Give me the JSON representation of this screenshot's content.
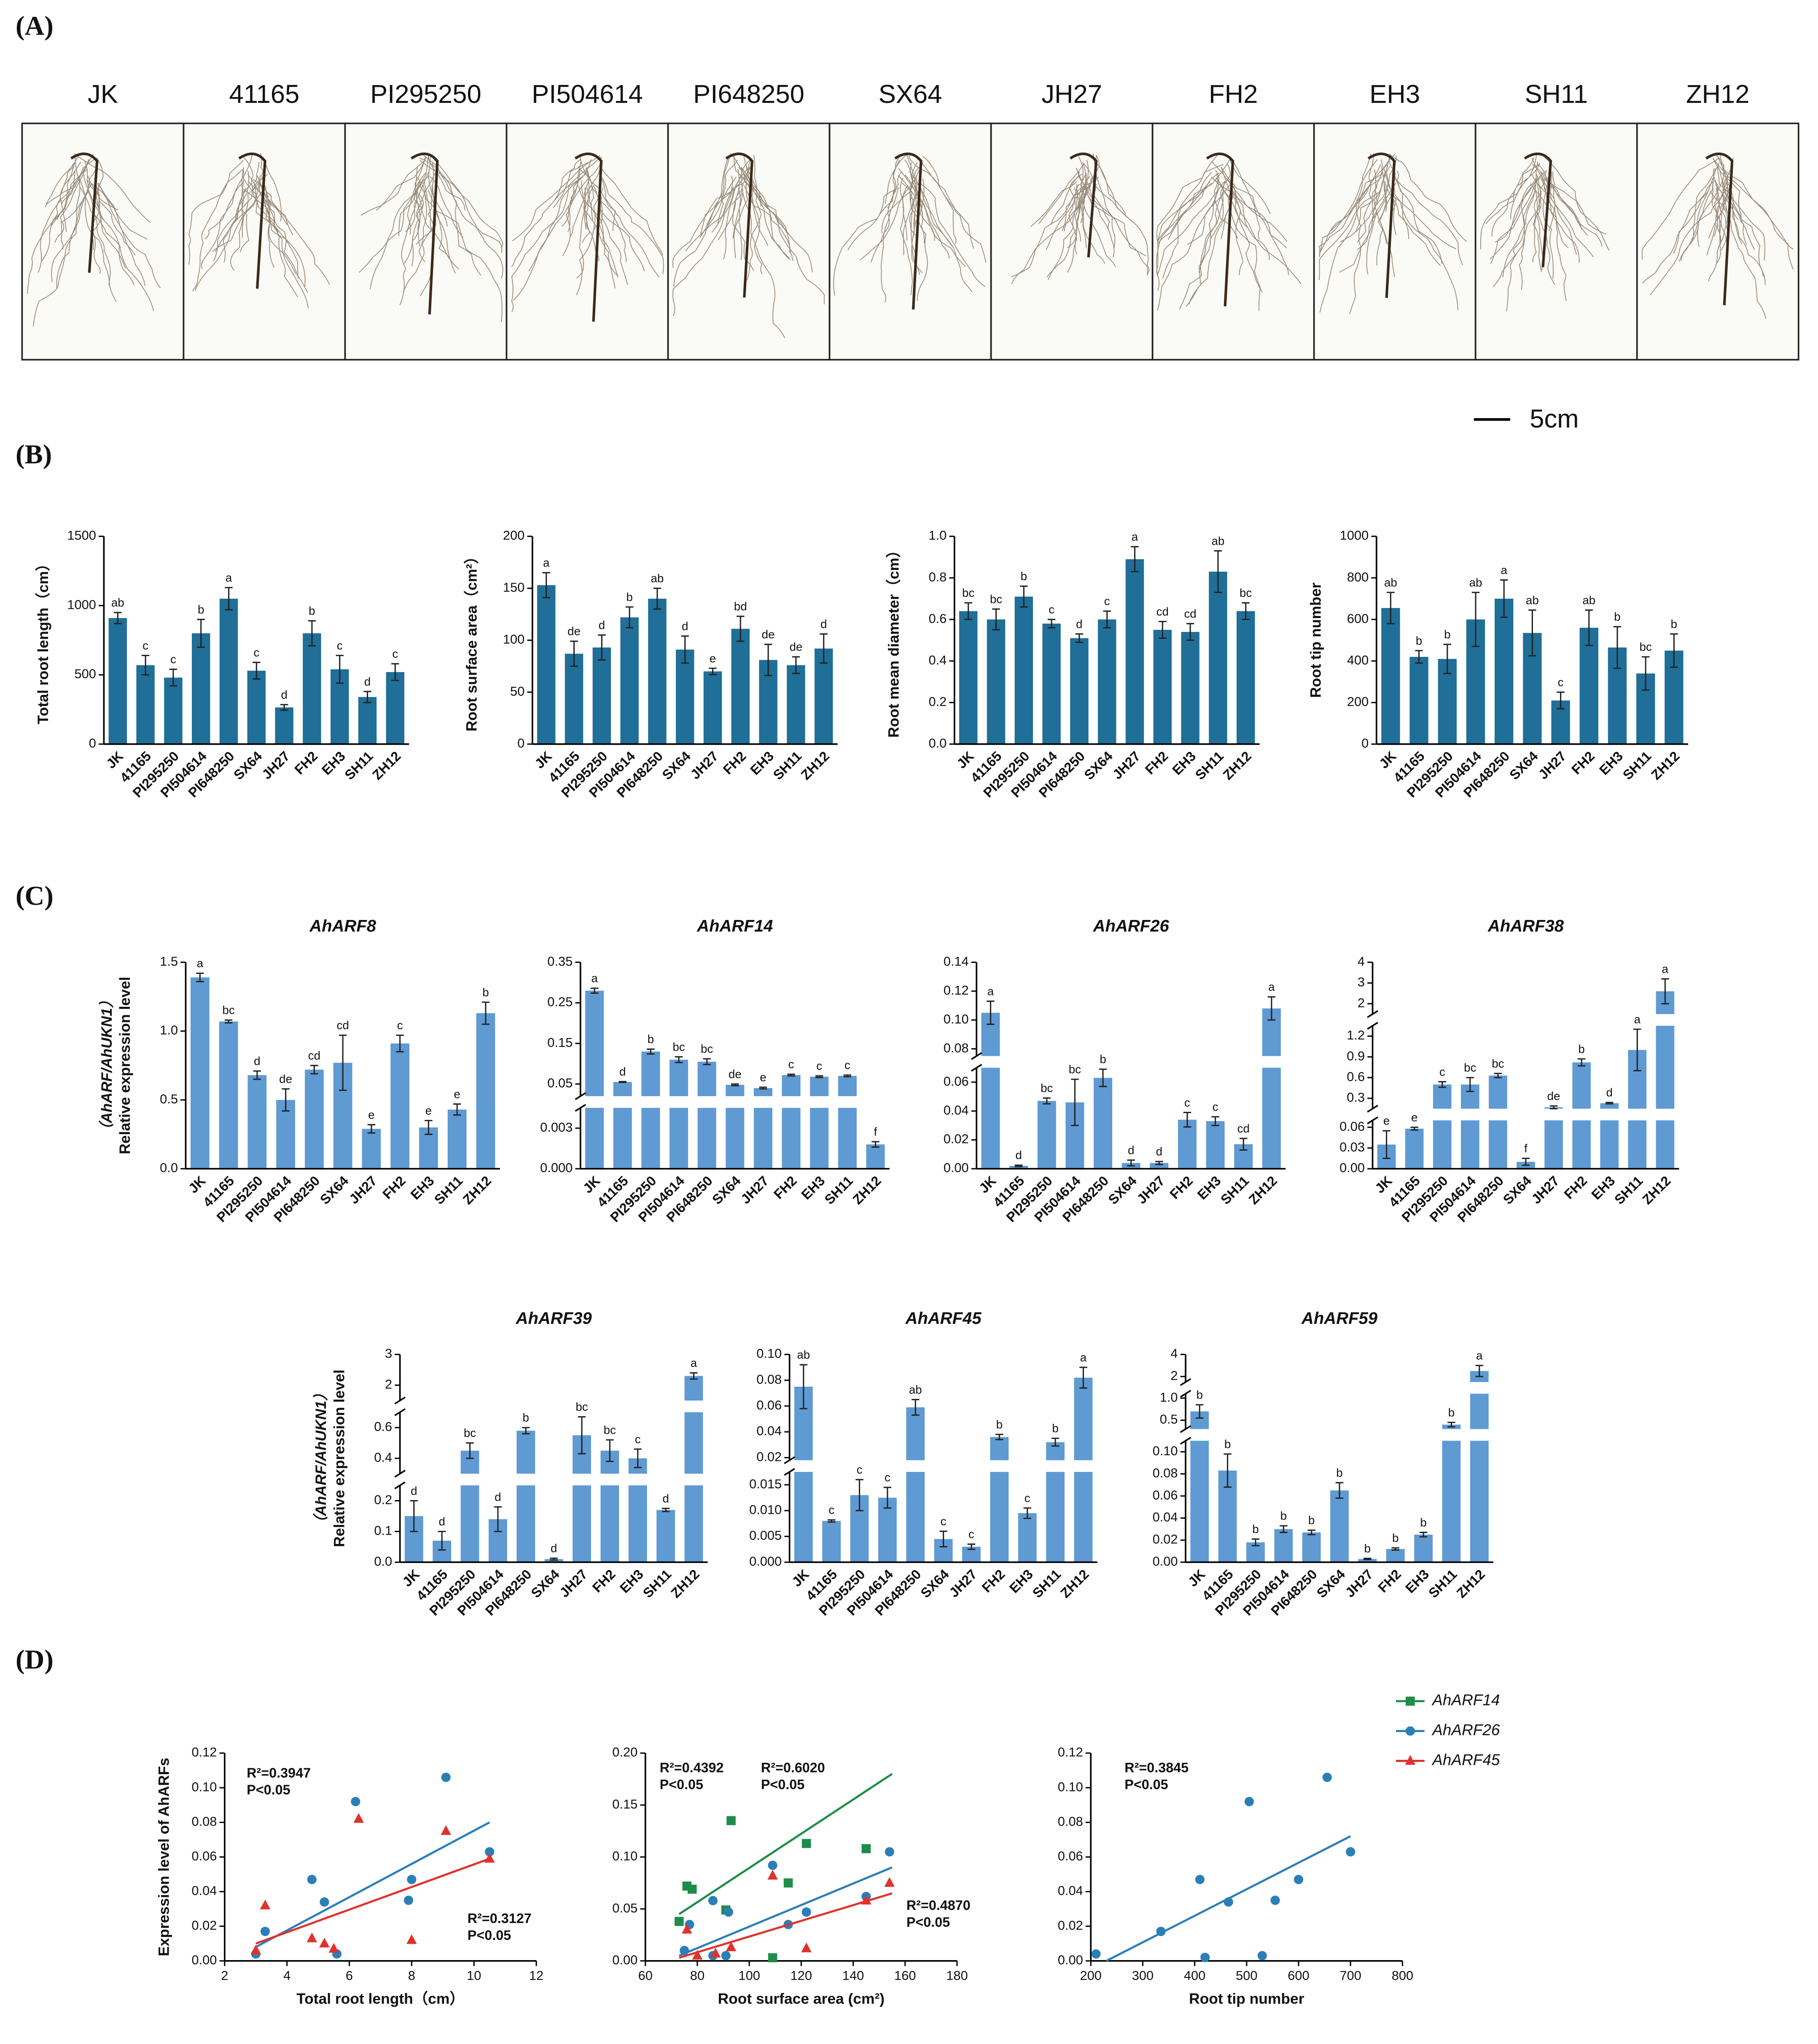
{
  "panels": [
    "(A)",
    "(B)",
    "(C)",
    "(D)"
  ],
  "photos": {
    "labels": [
      "JK",
      "41165",
      "PI295250",
      "PI504614",
      "PI648250",
      "SX64",
      "JH27",
      "FH2",
      "EH3",
      "SH11",
      "ZH12"
    ],
    "scale": "5cm"
  },
  "chart_data": [
    {
      "type": "bar",
      "ylabel": "Total root length（cm）",
      "color": "#1f6f98",
      "categories": [
        "JK",
        "41165",
        "PI295250",
        "PI504614",
        "PI648250",
        "SX64",
        "JH27",
        "FH2",
        "EH3",
        "SH11",
        "ZH12"
      ],
      "values": [
        910,
        570,
        480,
        800,
        1050,
        530,
        265,
        800,
        540,
        340,
        520
      ],
      "errors": [
        40,
        70,
        60,
        100,
        80,
        60,
        20,
        90,
        100,
        40,
        60
      ],
      "letters": [
        "ab",
        "c",
        "c",
        "b",
        "a",
        "c",
        "d",
        "b",
        "c",
        "d",
        "c"
      ],
      "ylim": [
        0,
        1500
      ],
      "yticks": [
        0,
        500,
        1000,
        1500
      ]
    },
    {
      "type": "bar",
      "ylabel": "Root surface area（cm²）",
      "color": "#1f6f98",
      "categories": [
        "JK",
        "41165",
        "PI295250",
        "PI504614",
        "PI648250",
        "SX64",
        "JH27",
        "FH2",
        "EH3",
        "SH11",
        "ZH12"
      ],
      "values": [
        153,
        87,
        93,
        122,
        140,
        91,
        70,
        111,
        81,
        76,
        92
      ],
      "errors": [
        12,
        12,
        12,
        10,
        10,
        13,
        3,
        12,
        15,
        8,
        14
      ],
      "letters": [
        "a",
        "de",
        "d",
        "b",
        "ab",
        "d",
        "e",
        "bd",
        "de",
        "de",
        "d"
      ],
      "ylim": [
        0,
        200
      ],
      "yticks": [
        0,
        50,
        100,
        150,
        200
      ]
    },
    {
      "type": "bar",
      "ylabel": "Root mean diameter（cm）",
      "color": "#1f6f98",
      "categories": [
        "JK",
        "41165",
        "PI295250",
        "PI504614",
        "PI648250",
        "SX64",
        "JH27",
        "FH2",
        "EH3",
        "SH11",
        "ZH12"
      ],
      "values": [
        0.64,
        0.6,
        0.71,
        0.58,
        0.51,
        0.6,
        0.89,
        0.55,
        0.54,
        0.83,
        0.64
      ],
      "errors": [
        0.04,
        0.05,
        0.05,
        0.02,
        0.02,
        0.04,
        0.06,
        0.04,
        0.04,
        0.1,
        0.04
      ],
      "letters": [
        "bc",
        "bc",
        "b",
        "c",
        "d",
        "c",
        "a",
        "cd",
        "cd",
        "ab",
        "bc"
      ],
      "ylim": [
        0,
        1
      ],
      "yticks": [
        {
          "value": 0,
          "label": "0.0"
        },
        0.2,
        0.4,
        0.6,
        0.8,
        {
          "value": 1,
          "label": "1.0"
        }
      ]
    },
    {
      "type": "bar",
      "ylabel": "Root tip number",
      "color": "#1f6f98",
      "categories": [
        "JK",
        "41165",
        "PI295250",
        "PI504614",
        "PI648250",
        "SX64",
        "JH27",
        "FH2",
        "EH3",
        "SH11",
        "ZH12"
      ],
      "values": [
        655,
        420,
        410,
        600,
        700,
        535,
        210,
        560,
        465,
        340,
        450
      ],
      "errors": [
        75,
        30,
        70,
        130,
        90,
        110,
        40,
        85,
        100,
        80,
        80
      ],
      "letters": [
        "ab",
        "b",
        "b",
        "ab",
        "a",
        "ab",
        "c",
        "ab",
        "b",
        "bc",
        "b"
      ],
      "ylim": [
        0,
        1000
      ],
      "yticks": [
        0,
        200,
        400,
        600,
        800,
        1000
      ]
    },
    {
      "type": "bar",
      "title": "AhARF8",
      "ylabel": [
        "Relative expression level",
        "（AhARF/AhUKN1）"
      ],
      "color": "#5f9ad3",
      "categories": [
        "JK",
        "41165",
        "PI295250",
        "PI504614",
        "PI648250",
        "SX64",
        "JH27",
        "FH2",
        "EH3",
        "SH11",
        "ZH12"
      ],
      "values": [
        1.39,
        1.07,
        0.68,
        0.5,
        0.72,
        0.77,
        0.29,
        0.91,
        0.3,
        0.43,
        1.13
      ],
      "errors": [
        0.03,
        0.01,
        0.03,
        0.08,
        0.03,
        0.2,
        0.03,
        0.06,
        0.05,
        0.04,
        0.08
      ],
      "letters": [
        "a",
        "bc",
        "d",
        "de",
        "cd",
        "cd",
        "e",
        "c",
        "e",
        "e",
        "b"
      ],
      "ylim": [
        0,
        1.5
      ],
      "yticks": [
        {
          "value": 0,
          "label": "0.0"
        },
        0.5,
        {
          "value": 1,
          "label": "1.0"
        },
        1.5
      ]
    },
    {
      "type": "bar",
      "title": "AhARF14",
      "color": "#5f9ad3",
      "categories": [
        "JK",
        "41165",
        "PI295250",
        "PI504614",
        "PI648250",
        "SX64",
        "JH27",
        "FH2",
        "EH3",
        "SH11",
        "ZH12"
      ],
      "values": [
        0.28,
        0.055,
        0.13,
        0.11,
        0.105,
        0.048,
        0.04,
        0.072,
        0.068,
        0.07,
        0.0018
      ],
      "errors": [
        0.006,
        0.001,
        0.006,
        0.007,
        0.007,
        0.002,
        0.002,
        0.002,
        0.002,
        0.002,
        0.0002
      ],
      "letters": [
        "a",
        "d",
        "b",
        "bc",
        "bc",
        "de",
        "e",
        "c",
        "c",
        "c",
        "f"
      ],
      "ylim": [
        0,
        0.35
      ],
      "ysegments": [
        [
          0,
          0.0045
        ],
        [
          0.02,
          0.35
        ]
      ],
      "yticks": [
        {
          "value": 0,
          "label": "0.000"
        },
        0.003,
        0.05,
        0.15,
        0.25,
        0.35
      ]
    },
    {
      "type": "bar",
      "title": "AhARF26",
      "color": "#5f9ad3",
      "categories": [
        "JK",
        "41165",
        "PI295250",
        "PI504614",
        "PI648250",
        "SX64",
        "JH27",
        "FH2",
        "EH3",
        "SH11",
        "ZH12"
      ],
      "values": [
        0.105,
        0.002,
        0.047,
        0.046,
        0.063,
        0.004,
        0.004,
        0.034,
        0.033,
        0.017,
        0.108
      ],
      "errors": [
        0.008,
        0.0005,
        0.002,
        0.016,
        0.006,
        0.002,
        0.001,
        0.005,
        0.003,
        0.004,
        0.008
      ],
      "letters": [
        "a",
        "d",
        "bc",
        "bc",
        "b",
        "d",
        "d",
        "c",
        "c",
        "cd",
        "a"
      ],
      "ylim": [
        0,
        0.14
      ],
      "ysegments": [
        [
          0,
          0.07
        ],
        [
          0.075,
          0.14
        ]
      ],
      "yticks": [
        {
          "value": 0,
          "label": "0.00"
        },
        0.02,
        0.04,
        0.06,
        0.08,
        {
          "value": 0.1,
          "label": "0.10"
        },
        0.12,
        0.14
      ]
    },
    {
      "type": "bar",
      "title": "AhARF38",
      "color": "#5f9ad3",
      "categories": [
        "JK",
        "41165",
        "PI295250",
        "PI504614",
        "PI648250",
        "SX64",
        "JH27",
        "FH2",
        "EH3",
        "SH11",
        "ZH12"
      ],
      "values": [
        0.035,
        0.058,
        0.5,
        0.5,
        0.63,
        0.01,
        0.17,
        0.82,
        0.23,
        1,
        2.6
      ],
      "errors": [
        0.02,
        0.002,
        0.04,
        0.1,
        0.03,
        0.005,
        0.02,
        0.05,
        0.01,
        0.3,
        0.6
      ],
      "letters": [
        "e",
        "e",
        "c",
        "bc",
        "bc",
        "f",
        "de",
        "b",
        "d",
        "a",
        "a"
      ],
      "ylim": [
        0,
        4
      ],
      "ysegments": [
        [
          0,
          0.07
        ],
        [
          0.15,
          1.35
        ],
        [
          1.5,
          4
        ]
      ],
      "yticks": [
        {
          "value": 0,
          "label": "0.00"
        },
        0.03,
        0.06,
        0.3,
        0.6,
        0.9,
        1.2,
        2,
        3,
        4
      ]
    },
    {
      "type": "bar",
      "title": "AhARF39",
      "ylabel": [
        "Relative expression level",
        "（AhARF/AhUKN1）"
      ],
      "color": "#5f9ad3",
      "categories": [
        "JK",
        "41165",
        "PI295250",
        "PI504614",
        "PI648250",
        "SX64",
        "JH27",
        "FH2",
        "EH3",
        "SH11",
        "ZH12"
      ],
      "values": [
        0.15,
        0.07,
        0.45,
        0.14,
        0.58,
        0.01,
        0.55,
        0.45,
        0.4,
        0.17,
        2.3
      ],
      "errors": [
        0.05,
        0.03,
        0.05,
        0.04,
        0.02,
        0.003,
        0.12,
        0.07,
        0.06,
        0.005,
        0.1
      ],
      "letters": [
        "d",
        "d",
        "bc",
        "d",
        "b",
        "d",
        "bc",
        "bc",
        "c",
        "d",
        "a"
      ],
      "ylim": [
        0,
        3
      ],
      "ysegments": [
        [
          0,
          0.25
        ],
        [
          0.3,
          0.7
        ],
        [
          1.5,
          3
        ]
      ],
      "yticks": [
        {
          "value": 0,
          "label": "0.0"
        },
        0.1,
        0.2,
        0.4,
        0.6,
        2,
        3
      ]
    },
    {
      "type": "bar",
      "title": "AhARF45",
      "color": "#5f9ad3",
      "categories": [
        "JK",
        "41165",
        "PI295250",
        "PI504614",
        "PI648250",
        "SX64",
        "JH27",
        "FH2",
        "EH3",
        "SH11",
        "ZH12"
      ],
      "values": [
        0.075,
        0.008,
        0.013,
        0.0125,
        0.059,
        0.0045,
        0.003,
        0.036,
        0.0095,
        0.032,
        0.082
      ],
      "errors": [
        0.017,
        0.0002,
        0.003,
        0.002,
        0.006,
        0.0015,
        0.0005,
        0.002,
        0.001,
        0.003,
        0.008
      ],
      "letters": [
        "ab",
        "c",
        "c",
        "c",
        "ab",
        "c",
        "c",
        "b",
        "c",
        "b",
        "a"
      ],
      "ylim": [
        0,
        0.1
      ],
      "ysegments": [
        [
          0,
          0.0175
        ],
        [
          0.018,
          0.1
        ]
      ],
      "yticks": [
        {
          "value": 0,
          "label": "0.000"
        },
        0.005,
        {
          "value": 0.01,
          "label": "0.010"
        },
        0.015,
        0.02,
        0.04,
        0.06,
        0.08,
        {
          "value": 0.1,
          "label": "0.10"
        }
      ]
    },
    {
      "type": "bar",
      "title": "AhARF59",
      "color": "#5f9ad3",
      "categories": [
        "JK",
        "41165",
        "PI295250",
        "PI504614",
        "PI648250",
        "SX64",
        "JH27",
        "FH2",
        "EH3",
        "SH11",
        "ZH12"
      ],
      "values": [
        0.7,
        0.083,
        0.018,
        0.03,
        0.027,
        0.065,
        0.003,
        0.012,
        0.025,
        0.4,
        2.5
      ],
      "errors": [
        0.15,
        0.015,
        0.003,
        0.003,
        0.002,
        0.007,
        0.0005,
        0.001,
        0.002,
        0.05,
        0.5
      ],
      "letters": [
        "b",
        "b",
        "b",
        "b",
        "b",
        "b",
        "b",
        "b",
        "b",
        "b",
        "a"
      ],
      "ylim": [
        0,
        4
      ],
      "ysegments": [
        [
          0,
          0.11
        ],
        [
          0.3,
          1.1
        ],
        [
          1.5,
          4
        ]
      ],
      "yticks": [
        {
          "value": 0,
          "label": "0.00"
        },
        0.02,
        0.04,
        0.06,
        0.08,
        {
          "value": 0.1,
          "label": "0.10"
        },
        0.5,
        {
          "value": 1,
          "label": "1.0"
        },
        2,
        4
      ]
    },
    {
      "type": "scatter",
      "xlabel": "Total root length（cm）",
      "ylabel": "Expression level of AhARFs",
      "xlim": [
        2,
        12
      ],
      "xticks": [
        2,
        4,
        6,
        8,
        10,
        12
      ],
      "ylim": [
        0,
        0.12
      ],
      "yticks": [
        {
          "value": 0,
          "label": "0.00"
        },
        0.02,
        0.04,
        0.06,
        0.08,
        {
          "value": 0.1,
          "label": "0.10"
        },
        0.12
      ],
      "series": [
        {
          "color": "#2b7fb8",
          "marker": "circle",
          "x": [
            3,
            3.3,
            4.8,
            5.2,
            5.6,
            6.2,
            7.9,
            8,
            9.1,
            10.5
          ],
          "values": [
            0.004,
            0.017,
            0.047,
            0.034,
            0.004,
            0.092,
            0.035,
            0.047,
            0.106,
            0.063
          ],
          "fit": {
            "x": [
              3,
              10.5
            ],
            "y": [
              0.008,
              0.08
            ]
          },
          "annotation": [
            "R²=0.3947",
            "P<0.05"
          ]
        },
        {
          "color": "#e0322d",
          "marker": "triangle",
          "x": [
            3,
            3.3,
            4.8,
            5.2,
            5.5,
            6.3,
            8,
            9.1,
            10.5
          ],
          "values": [
            0.006,
            0.032,
            0.013,
            0.01,
            0.007,
            0.082,
            0.012,
            0.075,
            0.059
          ],
          "fit": {
            "x": [
              3,
              10.5
            ],
            "y": [
              0.01,
              0.059
            ]
          },
          "annotation": [
            "R²=0.3127",
            "P<0.05"
          ]
        }
      ]
    },
    {
      "type": "scatter",
      "xlabel": "Root surface area (cm²)",
      "xlim": [
        60,
        180
      ],
      "xticks": [
        60,
        80,
        100,
        120,
        140,
        160,
        180
      ],
      "ylim": [
        0,
        0.2
      ],
      "yticks": [
        {
          "value": 0,
          "label": "0.00"
        },
        0.05,
        {
          "value": 0.1,
          "label": "0.10"
        },
        0.15,
        {
          "value": 0.2,
          "label": "0.20"
        }
      ],
      "series": [
        {
          "name": "AhARF14",
          "color": "#1e8c4b",
          "marker": "square",
          "x": [
            73,
            76,
            78,
            91,
            93,
            109,
            115,
            122,
            145
          ],
          "values": [
            0.038,
            0.072,
            0.069,
            0.049,
            0.135,
            0.003,
            0.075,
            0.113,
            0.108
          ],
          "fit": {
            "x": [
              73,
              155
            ],
            "y": [
              0.045,
              0.18
            ]
          },
          "annotation": [
            "R²=0.4392",
            "P<0.05"
          ]
        },
        {
          "name": "AhARF26",
          "color": "#2b7fb8",
          "marker": "circle",
          "x": [
            75,
            77,
            86,
            86,
            91,
            92,
            109,
            115,
            122,
            145,
            154
          ],
          "values": [
            0.01,
            0.035,
            0.058,
            0.005,
            0.005,
            0.047,
            0.092,
            0.035,
            0.047,
            0.062,
            0.105
          ],
          "fit": {
            "x": [
              73,
              155
            ],
            "y": [
              0.005,
              0.09
            ]
          },
          "annotation": [
            "R²=0.6020",
            "P<0.05"
          ]
        },
        {
          "name": "AhARF45",
          "color": "#e0322d",
          "marker": "triangle",
          "x": [
            76,
            80,
            87,
            93,
            109,
            122,
            145,
            154
          ],
          "values": [
            0.03,
            0.005,
            0.007,
            0.013,
            0.082,
            0.012,
            0.058,
            0.075
          ],
          "fit": {
            "x": [
              73,
              155
            ],
            "y": [
              0.003,
              0.065
            ]
          },
          "annotation": [
            "R²=0.4870",
            "P<0.05"
          ]
        }
      ]
    },
    {
      "type": "scatter",
      "xlabel": "Root tip number",
      "xlim": [
        200,
        800
      ],
      "xticks": [
        200,
        300,
        400,
        500,
        600,
        700,
        800
      ],
      "ylim": [
        0,
        0.12
      ],
      "yticks": [
        {
          "value": 0,
          "label": "0.00"
        },
        0.02,
        0.04,
        0.06,
        0.08,
        {
          "value": 0.1,
          "label": "0.10"
        },
        0.12
      ],
      "series": [
        {
          "color": "#2b7fb8",
          "marker": "circle",
          "x": [
            210,
            335,
            410,
            420,
            465,
            505,
            530,
            555,
            600,
            655,
            700
          ],
          "values": [
            0.004,
            0.017,
            0.047,
            0.002,
            0.034,
            0.092,
            0.003,
            0.035,
            0.047,
            0.106,
            0.063
          ],
          "fit": {
            "x": [
              230,
              700
            ],
            "y": [
              0,
              0.072
            ]
          },
          "annotation": [
            "R²=0.3845",
            "P<0.05"
          ]
        }
      ]
    }
  ]
}
